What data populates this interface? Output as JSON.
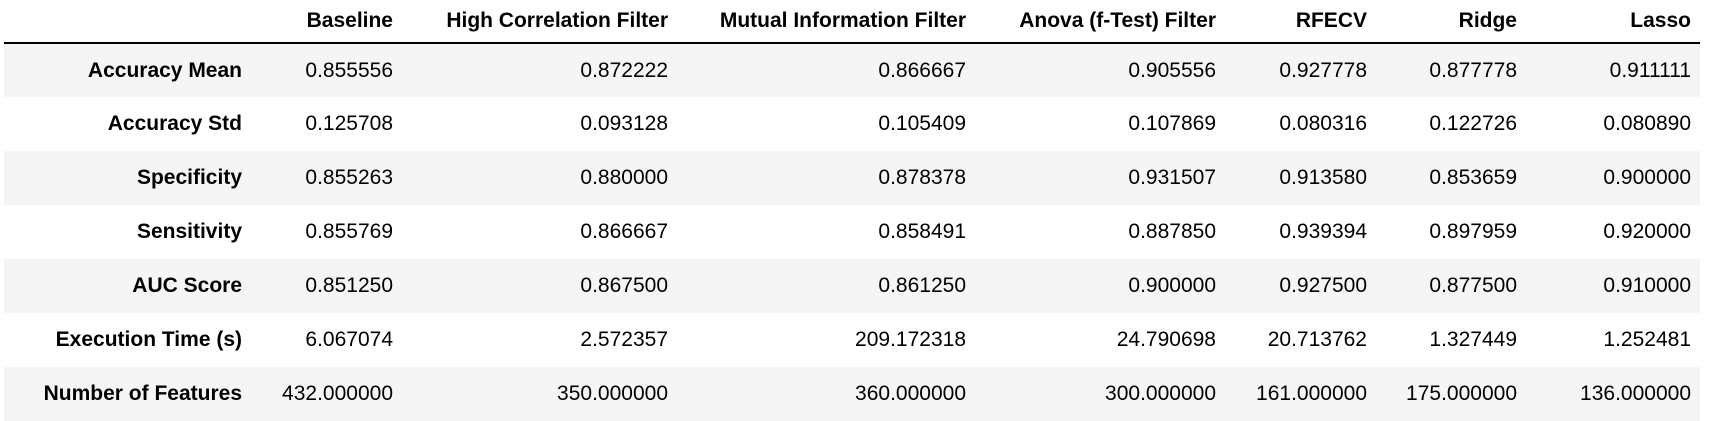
{
  "table": {
    "columns": [
      "",
      "Baseline",
      "High Correlation Filter",
      "Mutual Information Filter",
      "Anova (f-Test) Filter",
      "RFECV",
      "Ridge",
      "Lasso"
    ],
    "rows": [
      {
        "label": "Accuracy Mean",
        "values": [
          "0.855556",
          "0.872222",
          "0.866667",
          "0.905556",
          "0.927778",
          "0.877778",
          "0.911111"
        ]
      },
      {
        "label": "Accuracy Std",
        "values": [
          "0.125708",
          "0.093128",
          "0.105409",
          "0.107869",
          "0.080316",
          "0.122726",
          "0.080890"
        ]
      },
      {
        "label": "Specificity",
        "values": [
          "0.855263",
          "0.880000",
          "0.878378",
          "0.931507",
          "0.913580",
          "0.853659",
          "0.900000"
        ]
      },
      {
        "label": "Sensitivity",
        "values": [
          "0.855769",
          "0.866667",
          "0.858491",
          "0.887850",
          "0.939394",
          "0.897959",
          "0.920000"
        ]
      },
      {
        "label": "AUC Score",
        "values": [
          "0.851250",
          "0.867500",
          "0.861250",
          "0.900000",
          "0.927500",
          "0.877500",
          "0.910000"
        ]
      },
      {
        "label": "Execution Time (s)",
        "values": [
          "6.067074",
          "2.572357",
          "209.172318",
          "24.790698",
          "20.713762",
          "1.327449",
          "1.252481"
        ]
      },
      {
        "label": "Number of Features",
        "values": [
          "432.000000",
          "350.000000",
          "360.000000",
          "300.000000",
          "161.000000",
          "175.000000",
          "136.000000"
        ]
      }
    ]
  }
}
